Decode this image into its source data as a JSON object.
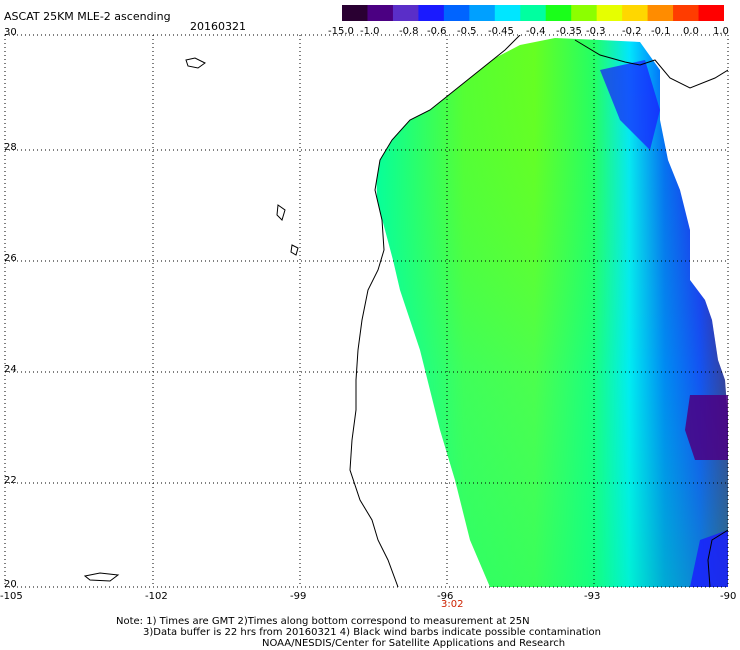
{
  "header": {
    "title": "ASCAT 25KM MLE-2 ascending",
    "date": "20160321"
  },
  "colorbar": {
    "labels": [
      "-15.0",
      "-1.0",
      "-0.8",
      "-0.6",
      "-0.5",
      "-0.45",
      "-0.4",
      "-0.35",
      "-0.3",
      "-0.2",
      "-0.1",
      "0.0",
      "1.0"
    ],
    "colors": [
      "#2a0032",
      "#4b0082",
      "#5a2ec8",
      "#1a1aff",
      "#0064ff",
      "#00a0ff",
      "#00e6ff",
      "#00ffa0",
      "#1aff1a",
      "#8cff00",
      "#e6ff00",
      "#ffd700",
      "#ff8c00",
      "#ff3c00",
      "#ff0000"
    ]
  },
  "map": {
    "lat_labels": [
      "30",
      "28",
      "26",
      "24",
      "22",
      "20"
    ],
    "lon_labels": [
      "-105",
      "-102",
      "-99",
      "-96",
      "-93",
      "-90"
    ],
    "time_label": "3:02",
    "time_label_color": "#cc2200",
    "land_color": "#ffffff",
    "coast_color": "#000000"
  },
  "notes": {
    "line1": "Note: 1) Times are GMT 2)Times along bottom correspond to measurement at 25N",
    "line2": "3)Data buffer is 22 hrs from 20160321 4) Black wind barbs indicate possible contamination",
    "line3": "NOAA/NESDIS/Center for Satellite Applications and Research"
  }
}
